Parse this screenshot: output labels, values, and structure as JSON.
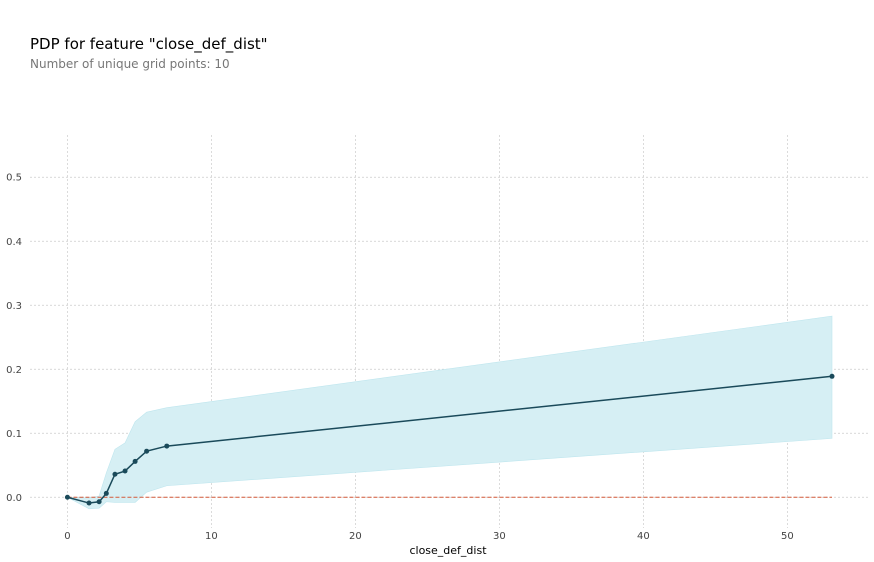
{
  "chart_data": {
    "type": "line",
    "title": "PDP for feature \"close_def_dist\"",
    "subtitle": "Number of unique grid points: 10",
    "xlabel": "close_def_dist",
    "ylabel": "",
    "xlim": [
      -2.6,
      55.6
    ],
    "ylim": [
      -0.048,
      0.566
    ],
    "x_ticks": [
      0,
      10,
      20,
      30,
      40,
      50
    ],
    "y_ticks": [
      0.0,
      0.1,
      0.2,
      0.3,
      0.4,
      0.5
    ],
    "grid": true,
    "x": [
      0,
      1.5,
      2.2,
      2.7,
      3.3,
      4.0,
      4.7,
      5.5,
      6.9,
      53.1
    ],
    "y": [
      0.0,
      -0.009,
      -0.007,
      0.006,
      0.036,
      0.041,
      0.056,
      0.072,
      0.08,
      0.189
    ],
    "band_upper": [
      0.0,
      -0.001,
      0.002,
      0.038,
      0.075,
      0.085,
      0.118,
      0.133,
      0.14,
      0.283
    ],
    "band_lower": [
      0.0,
      -0.018,
      -0.017,
      -0.007,
      -0.008,
      -0.008,
      -0.008,
      0.008,
      0.018,
      0.092
    ],
    "baseline": 0.0,
    "colors": {
      "line": "#1a4a5a",
      "band": "#d6eff4",
      "baseline": "#d45a3a",
      "grid": "#cccccc"
    }
  }
}
